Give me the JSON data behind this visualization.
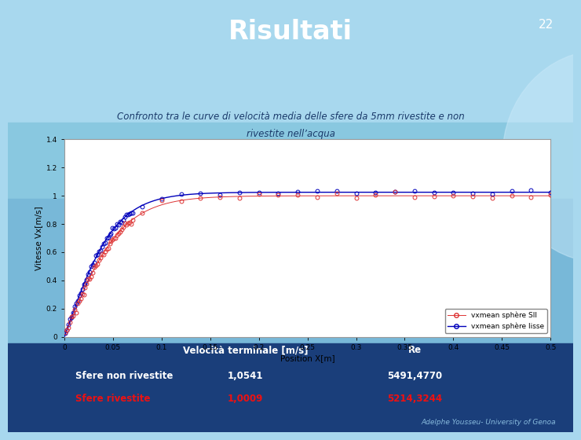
{
  "title": "Risultati",
  "slide_number": "22",
  "subtitle1": "Confronto tra le curve di velocità media delle sfere da 5mm rivestite e non",
  "subtitle2": "rivestite nell’acqua",
  "bg_top_color": "#A8D8EE",
  "bg_bottom_color": "#2255A0",
  "plot_border_color": "#5599CC",
  "plot_bg": "#FFFFFF",
  "xlabel": "Position X[m]",
  "ylabel": "Vitesse Vx[m/s]",
  "xlim": [
    0,
    0.5
  ],
  "ylim": [
    0,
    1.4
  ],
  "xticks": [
    0,
    0.05,
    0.1,
    0.15,
    0.2,
    0.25,
    0.3,
    0.35,
    0.4,
    0.45,
    0.5
  ],
  "xtick_labels": [
    "0",
    "0.05",
    "0.1",
    "0.15",
    "0.2",
    "0.25",
    "0.3",
    "0.35",
    "0.4",
    "0.45",
    "0.5"
  ],
  "yticks": [
    0,
    0.2,
    0.4,
    0.6,
    0.8,
    1.0,
    1.2,
    1.4
  ],
  "ytick_labels": [
    "0",
    "0.2",
    "0.4",
    "0.6",
    "0.8",
    "1",
    "1.2",
    "1.4"
  ],
  "legend1": "vxmean sphère SII",
  "legend2": "vxmean sphère lisse",
  "color_SII": "#DD3333",
  "color_lisse": "#0000BB",
  "table_header_vel": "Velocità terminale [m/s]",
  "table_header_re": "Re",
  "row1_label": "Sfere non rivestite",
  "row1_vel": "1,0541",
  "row1_re": "5491,4770",
  "row2_label": "Sfere rivestite",
  "row2_vel": "1,0009",
  "row2_re": "5214,3244",
  "row2_color": "#EE1111",
  "text_white": "#FFFFFF",
  "footer": "Adelphe Yousseu- University of Genoa",
  "footer_color": "#88BBDD"
}
